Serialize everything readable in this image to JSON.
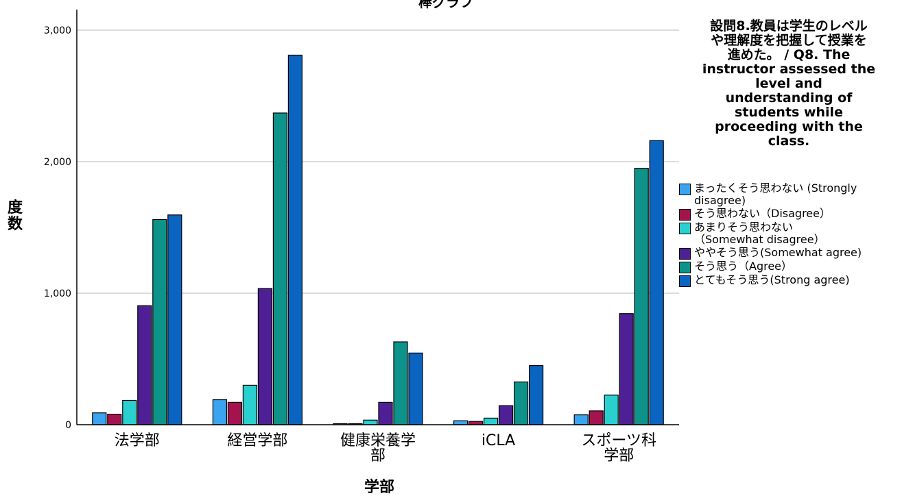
{
  "chart_data": {
    "type": "bar",
    "title": "棒グラフ",
    "xlabel": "学部",
    "ylabel": "度数",
    "ylim": [
      0,
      3000
    ],
    "yticks": [
      "0",
      "1,000",
      "2,000",
      "3,000"
    ],
    "yticks_values": [
      0,
      1000,
      2000,
      3000
    ],
    "grid": "horizontal",
    "categories": [
      "法学部",
      "経営学部",
      "健康栄養学部",
      "iCLA",
      "スポーツ科学部"
    ],
    "category_labels": [
      "法学部",
      "経営学部",
      "健康栄養学\n部",
      "iCLA",
      "スポーツ科\n学部"
    ],
    "legend_title": "設問8.教員は学生のレベル\nや理解度を把握して授業を\n進めた。 / Q8. The\ninstructor assessed the\nlevel and\nunderstanding of\nstudents while\nproceeding with the\nclass.",
    "legend_position": "right",
    "series": [
      {
        "name": "まったくそう思わない (Strongly\ndisagree)",
        "color": "#3aa4f0",
        "values": [
          90,
          190,
          8,
          30,
          75
        ]
      },
      {
        "name": "そう思わない（Disagree）",
        "color": "#a3144f",
        "values": [
          80,
          170,
          8,
          25,
          105
        ]
      },
      {
        "name": "あまりそう思わない\n（Somewhat disagree）",
        "color": "#2ad0d0",
        "values": [
          185,
          300,
          35,
          50,
          225
        ]
      },
      {
        "name": "ややそう思う(Somewhat agree)",
        "color": "#4f1f95",
        "values": [
          905,
          1035,
          170,
          145,
          845
        ]
      },
      {
        "name": "そう思う（Agree）",
        "color": "#0d938a",
        "values": [
          1560,
          2370,
          630,
          325,
          1950
        ]
      },
      {
        "name": "とてもそう思う(Strong agree)",
        "color": "#0a64c0",
        "values": [
          1595,
          2810,
          545,
          450,
          2160
        ]
      }
    ]
  }
}
